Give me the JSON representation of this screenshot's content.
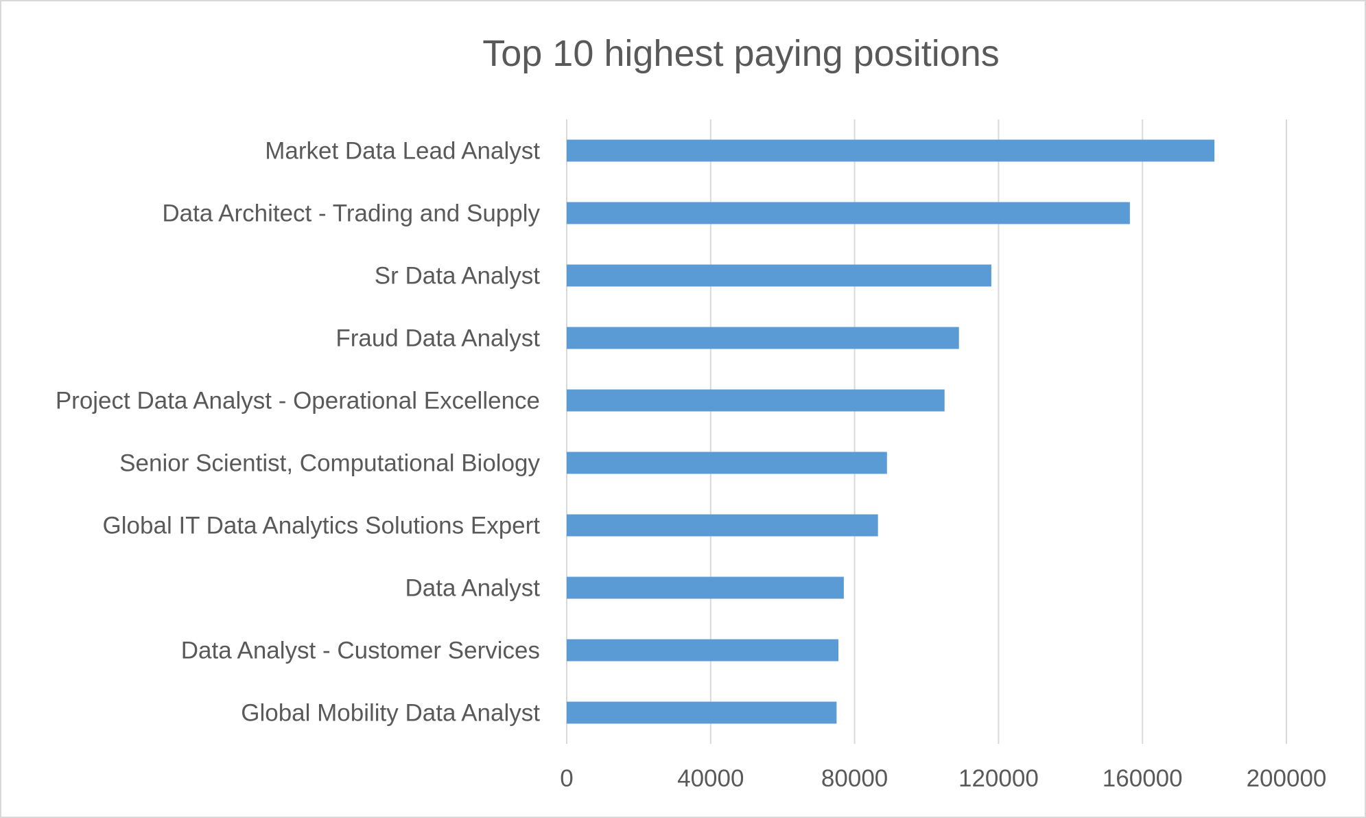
{
  "chart_data": {
    "type": "bar",
    "orientation": "horizontal",
    "title": "Top 10 highest paying positions",
    "xlabel": "",
    "ylabel": "",
    "categories": [
      "Market Data Lead Analyst",
      "Data Architect - Trading and Supply",
      "Sr Data Analyst",
      "Fraud Data Analyst",
      "Project Data Analyst - Operational Excellence",
      "Senior Scientist, Computational Biology",
      "Global IT Data Analytics Solutions Expert",
      "Data Analyst",
      "Data Analyst - Customer Services",
      "Global Mobility Data Analyst"
    ],
    "values": [
      180000,
      156500,
      118000,
      109000,
      105000,
      89000,
      86500,
      77000,
      75500,
      75000
    ],
    "xlim": [
      0,
      200000
    ],
    "xticks": [
      "0",
      "40000",
      "80000",
      "120000",
      "160000",
      "200000"
    ],
    "grid": true,
    "legend": "none",
    "bar_color": "#5b9bd5"
  }
}
